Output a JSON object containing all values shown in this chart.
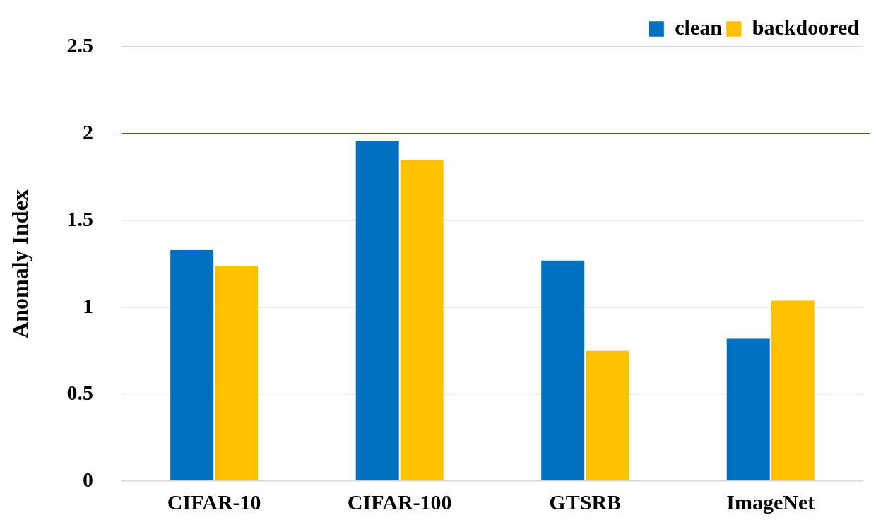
{
  "chart_data": {
    "type": "bar",
    "ylabel": "Anomaly Index",
    "categories": [
      "CIFAR-10",
      "CIFAR-100",
      "GTSRB",
      "ImageNet"
    ],
    "series": [
      {
        "name": "clean",
        "color": "#0070c0",
        "values": [
          1.33,
          1.96,
          1.27,
          0.82
        ]
      },
      {
        "name": "backdoored",
        "color": "#ffc000",
        "values": [
          1.24,
          1.85,
          0.75,
          1.04
        ]
      }
    ],
    "ylim": [
      0,
      2.5
    ],
    "yticks": [
      0,
      0.5,
      1,
      1.5,
      2,
      2.5
    ],
    "grid": "y",
    "legend": "top right",
    "ref_lines": [
      {
        "axis": "y",
        "value": 2,
        "color": "#e02020"
      }
    ]
  }
}
